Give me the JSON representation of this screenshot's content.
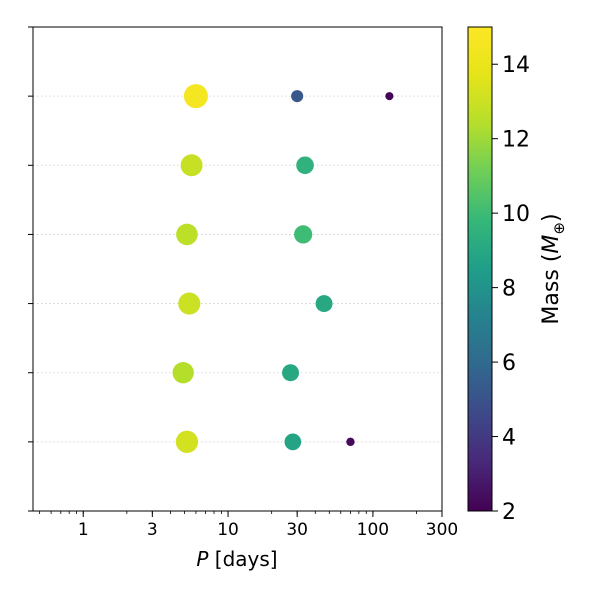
{
  "chart_data": {
    "type": "scatter",
    "title": "",
    "xlabel_italic": "P",
    "xlabel_rest": " [days]",
    "x_scale": "log",
    "xlim": [
      0.45,
      300
    ],
    "x_ticks": [
      1,
      3,
      10,
      30,
      100,
      300
    ],
    "x_tick_labels": [
      "1",
      "3",
      "10",
      "30",
      "100",
      "300"
    ],
    "ylim": [
      0,
      7
    ],
    "y_ticks": [
      1,
      2,
      3,
      4,
      5,
      6
    ],
    "y_tick_labels_shown": false,
    "grid": "horizontal dotted at y ticks",
    "color_scale": {
      "name": "viridis",
      "label_prefix": "Mass (",
      "label_symbol": "M",
      "label_subscript": "⊕",
      "label_suffix": ")",
      "range": [
        2,
        15
      ],
      "ticks": [
        2,
        4,
        6,
        8,
        10,
        12,
        14
      ],
      "tick_labels": [
        "2",
        "4",
        "6",
        "8",
        "10",
        "12",
        "14"
      ]
    },
    "size_encodes": "mass",
    "rows": [
      {
        "y": 6,
        "points": [
          {
            "period": 6.0,
            "mass": 14.5
          },
          {
            "period": 30,
            "mass": 5.2
          },
          {
            "period": 130,
            "mass": 2.1
          }
        ]
      },
      {
        "y": 5,
        "points": [
          {
            "period": 5.6,
            "mass": 12.9
          },
          {
            "period": 34,
            "mass": 9.5
          }
        ]
      },
      {
        "y": 4,
        "points": [
          {
            "period": 5.2,
            "mass": 12.6
          },
          {
            "period": 33,
            "mass": 10.0
          }
        ]
      },
      {
        "y": 3,
        "points": [
          {
            "period": 5.4,
            "mass": 13.0
          },
          {
            "period": 46,
            "mass": 9.0
          }
        ]
      },
      {
        "y": 2,
        "points": [
          {
            "period": 4.9,
            "mass": 12.4
          },
          {
            "period": 27,
            "mass": 9.0
          }
        ]
      },
      {
        "y": 1,
        "points": [
          {
            "period": 5.2,
            "mass": 13.2
          },
          {
            "period": 28,
            "mass": 8.8
          },
          {
            "period": 70,
            "mass": 2.3
          }
        ]
      }
    ]
  }
}
